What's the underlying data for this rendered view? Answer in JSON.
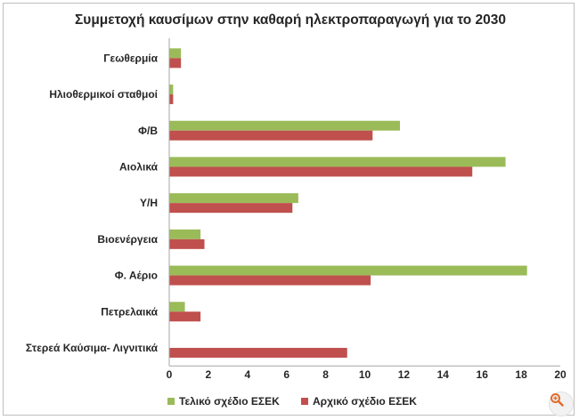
{
  "chart_data": {
    "type": "bar",
    "orientation": "horizontal",
    "title": "Συμμετοχή καυσίμων στην καθαρή ηλεκτροπαραγωγή για το 2030",
    "categories": [
      "Γεωθερμία",
      "Ηλιοθερμικοί σταθμοί",
      "Φ/Β",
      "Αιολικά",
      "Υ/Η",
      "Βιοενέργεια",
      "Φ. Αέριο",
      "Πετρελαικά",
      "Στερεά Καύσιμα- Λιγνιτικά"
    ],
    "series": [
      {
        "name": "Τελικό σχέδιο ΕΣΕΚ",
        "color": "#9bbb59",
        "values": [
          0.6,
          0.2,
          11.8,
          17.2,
          6.6,
          1.6,
          18.3,
          0.8,
          0
        ]
      },
      {
        "name": "Αρχικό σχέδιο ΕΣΕΚ",
        "color": "#c0504d",
        "values": [
          0.6,
          0.2,
          10.4,
          15.5,
          6.3,
          1.8,
          10.3,
          1.6,
          9.1
        ]
      }
    ],
    "xlim": [
      0,
      20
    ],
    "ticks": [
      "0",
      "2",
      "4",
      "6",
      "8",
      "10",
      "12",
      "14",
      "16",
      "18",
      "20"
    ],
    "legend_position": "bottom",
    "grid": false
  },
  "icons": {
    "zoom": "zoom-in-icon"
  }
}
